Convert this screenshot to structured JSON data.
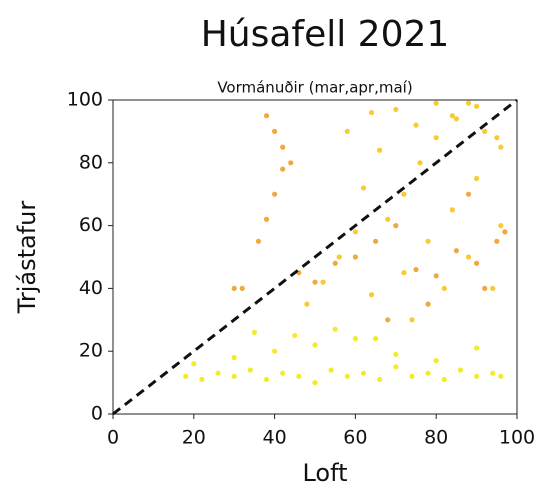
{
  "chart_data": {
    "type": "scatter",
    "title": "Húsafell 2021",
    "subtitle": "Vormánuðir (mar,apr,maí)",
    "xlabel": "Loft",
    "ylabel": "Trjástafur",
    "xlim": [
      0,
      100
    ],
    "ylim": [
      0,
      100
    ],
    "xticks": [
      0,
      20,
      40,
      60,
      80,
      100
    ],
    "yticks": [
      0,
      20,
      40,
      60,
      80,
      100
    ],
    "grid": false,
    "series": [
      {
        "color": "#f3e600",
        "x": [
          18,
          22,
          26,
          30,
          34,
          38,
          42,
          46,
          50,
          54,
          58,
          62,
          66,
          70,
          74,
          78,
          82,
          86,
          90,
          94,
          96,
          20,
          30,
          40,
          50,
          60,
          70,
          80,
          90,
          35,
          45,
          55,
          65
        ],
        "values": [
          12,
          11,
          13,
          12,
          14,
          11,
          13,
          12,
          10,
          14,
          12,
          13,
          11,
          15,
          12,
          13,
          11,
          14,
          12,
          13,
          12,
          16,
          18,
          20,
          22,
          24,
          19,
          17,
          21,
          26,
          25,
          27,
          24
        ]
      },
      {
        "color": "#f7c210",
        "x": [
          48,
          52,
          56,
          60,
          64,
          68,
          72,
          76,
          80,
          84,
          88,
          92,
          96,
          70,
          75,
          80,
          85,
          90,
          95,
          72,
          78,
          84,
          90,
          96,
          62,
          66,
          74,
          82,
          88,
          94,
          58,
          64
        ],
        "values": [
          35,
          42,
          50,
          58,
          38,
          62,
          70,
          80,
          88,
          95,
          99,
          90,
          85,
          97,
          92,
          99,
          94,
          98,
          88,
          45,
          55,
          65,
          75,
          60,
          72,
          84,
          30,
          40,
          50,
          40,
          90,
          96
        ]
      },
      {
        "color": "#ec9a1c",
        "x": [
          30,
          32,
          36,
          38,
          40,
          42,
          44,
          42,
          40,
          38,
          46,
          50,
          55,
          60,
          65,
          70,
          75,
          80,
          85,
          90,
          95,
          97,
          92,
          88,
          78,
          68
        ],
        "values": [
          40,
          40,
          55,
          62,
          70,
          78,
          80,
          85,
          90,
          95,
          45,
          42,
          48,
          50,
          55,
          60,
          46,
          44,
          52,
          48,
          55,
          58,
          40,
          70,
          35,
          30
        ]
      }
    ],
    "reference_line": {
      "x": [
        0,
        100
      ],
      "values": [
        0,
        100
      ],
      "color": "#111111",
      "style": "dashed"
    }
  }
}
